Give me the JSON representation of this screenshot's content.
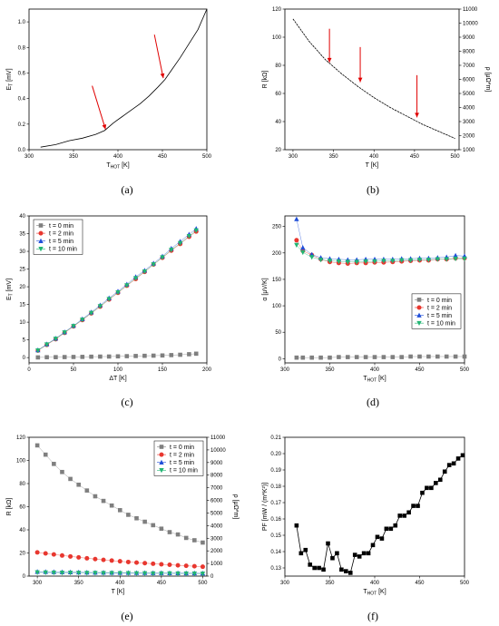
{
  "chart_data": [
    {
      "panel": "(a)",
      "type": "line",
      "xlabel": "T",
      "xlabel_sub": "HOT",
      "xlabel_unit": " [K]",
      "ylabel": "E",
      "ylabel_sub": "T",
      "ylabel_unit": " [mV]",
      "xlim": [
        300,
        500
      ],
      "ylim": [
        0,
        1.1
      ],
      "xticks": [
        "300",
        "350",
        "400",
        "450",
        "500"
      ],
      "yticks": [
        "0.0",
        "0.2",
        "0.4",
        "0.6",
        "0.8",
        "1.0"
      ],
      "color": "#000000",
      "arrow_color": "#e00000",
      "x": [
        313,
        330,
        345,
        360,
        375,
        385,
        395,
        405,
        415,
        425,
        435,
        445,
        453,
        460,
        470,
        480,
        490,
        500
      ],
      "y": [
        0.02,
        0.04,
        0.07,
        0.09,
        0.12,
        0.15,
        0.21,
        0.26,
        0.31,
        0.36,
        0.42,
        0.49,
        0.55,
        0.62,
        0.72,
        0.83,
        0.94,
        1.1
      ],
      "arrows": [
        {
          "from": [
            371,
            0.5
          ],
          "to": [
            386,
            0.16
          ]
        },
        {
          "from": [
            441,
            0.9
          ],
          "to": [
            451,
            0.56
          ]
        }
      ]
    },
    {
      "panel": "(b)",
      "type": "line",
      "xlabel": "T",
      "xlabel_sub": "",
      "xlabel_unit": " [K]",
      "ylabel": "R",
      "ylabel_sub": "",
      "ylabel_unit": " [kΩ]",
      "y2label": "ρ [μΩ*m]",
      "xlim": [
        290,
        505
      ],
      "ylim": [
        20,
        120
      ],
      "y2lim": [
        1000,
        11000
      ],
      "xticks": [
        "300",
        "350",
        "400",
        "450",
        "500"
      ],
      "yticks": [
        "20",
        "40",
        "60",
        "80",
        "100",
        "120"
      ],
      "y2ticks": [
        "1000",
        "2000",
        "3000",
        "4000",
        "5000",
        "6000",
        "7000",
        "8000",
        "9000",
        "10000",
        "11000"
      ],
      "color": "#000000",
      "arrow_color": "#e00000",
      "x": [
        300,
        320,
        340,
        360,
        380,
        400,
        420,
        440,
        460,
        480,
        500
      ],
      "y": [
        113,
        97,
        84,
        74,
        65,
        57,
        50,
        44,
        38,
        33,
        28
      ],
      "arrows": [
        {
          "from": [
            345,
            106
          ],
          "to": [
            345,
            82
          ]
        },
        {
          "from": [
            383,
            93
          ],
          "to": [
            383,
            68
          ]
        },
        {
          "from": [
            453,
            73
          ],
          "to": [
            453,
            43
          ]
        }
      ]
    },
    {
      "panel": "(c)",
      "type": "scatter",
      "xlabel": "ΔT",
      "xlabel_sub": "",
      "xlabel_unit": " [K]",
      "ylabel": "E",
      "ylabel_sub": "T",
      "ylabel_unit": " [mV]",
      "xlim": [
        0,
        200
      ],
      "ylim": [
        -1.5,
        40
      ],
      "xticks": [
        "0",
        "50",
        "100",
        "150",
        "200"
      ],
      "yticks": [
        "0",
        "5",
        "10",
        "15",
        "20",
        "25",
        "30",
        "35",
        "40"
      ],
      "legend_position": "top-left",
      "x": [
        10,
        20,
        30,
        40,
        50,
        60,
        70,
        80,
        90,
        100,
        110,
        120,
        130,
        140,
        150,
        160,
        170,
        180,
        188
      ],
      "series": [
        {
          "name": "t = 0 min",
          "marker": "square",
          "color": "#7f7f7f",
          "values": [
            0.05,
            0.1,
            0.12,
            0.15,
            0.18,
            0.2,
            0.25,
            0.28,
            0.3,
            0.35,
            0.4,
            0.45,
            0.5,
            0.55,
            0.6,
            0.7,
            0.8,
            0.95,
            1.1
          ]
        },
        {
          "name": "t = 2 min",
          "marker": "circle",
          "color": "#e8372f",
          "values": [
            2,
            3.6,
            5.2,
            7,
            8.8,
            10.6,
            12.5,
            14.4,
            16.4,
            18.3,
            20.3,
            22.2,
            24.2,
            26.3,
            28.2,
            30.2,
            32.1,
            34.1,
            35.6
          ]
        },
        {
          "name": "t = 5 min",
          "marker": "triangle-up",
          "color": "#1f4ed8",
          "values": [
            2.1,
            3.8,
            5.4,
            7.2,
            9,
            10.9,
            12.8,
            14.8,
            16.8,
            18.7,
            20.7,
            22.8,
            24.6,
            26.6,
            28.6,
            30.8,
            32.8,
            34.8,
            36.4
          ]
        },
        {
          "name": "t = 10 min",
          "marker": "triangle-down",
          "color": "#22b573",
          "values": [
            2,
            3.7,
            5.3,
            7.1,
            8.9,
            10.7,
            12.6,
            14.5,
            16.5,
            18.4,
            20.4,
            22.4,
            24.3,
            26.3,
            28.3,
            30.4,
            32.3,
            34.3,
            35.9
          ]
        }
      ]
    },
    {
      "panel": "(d)",
      "type": "scatter",
      "xlabel": "T",
      "xlabel_sub": "HOT",
      "xlabel_unit": " [K]",
      "ylabel": "α [μV/K]",
      "ylabel_sub": "",
      "ylabel_unit": "",
      "xlim": [
        300,
        500
      ],
      "ylim": [
        -8,
        270
      ],
      "xticks": [
        "300",
        "350",
        "400",
        "450",
        "500"
      ],
      "yticks": [
        "0",
        "50",
        "100",
        "150",
        "200",
        "250"
      ],
      "legend_position": "center-right",
      "x": [
        313,
        320,
        330,
        340,
        350,
        360,
        370,
        380,
        390,
        400,
        410,
        420,
        430,
        440,
        450,
        460,
        470,
        480,
        490,
        500
      ],
      "series": [
        {
          "name": "t = 0 min",
          "marker": "square",
          "color": "#7f7f7f",
          "values": [
            2,
            2,
            2,
            2,
            2,
            3,
            3,
            3,
            3,
            3,
            3,
            3,
            3,
            4,
            4,
            4,
            4,
            4,
            4,
            4
          ]
        },
        {
          "name": "t = 2 min",
          "marker": "circle",
          "color": "#e8372f",
          "values": [
            224,
            204,
            196,
            188,
            183,
            181,
            180,
            181,
            181,
            182,
            182,
            183,
            184,
            185,
            186,
            186,
            188,
            188,
            190,
            190
          ]
        },
        {
          "name": "t = 5 min",
          "marker": "triangle-up",
          "color": "#1f4ed8",
          "values": [
            264,
            210,
            197,
            191,
            189,
            188,
            187,
            187,
            188,
            188,
            188,
            188,
            189,
            189,
            190,
            190,
            191,
            192,
            195,
            194
          ]
        },
        {
          "name": "t = 10 min",
          "marker": "triangle-down",
          "color": "#22b573",
          "values": [
            215,
            201,
            192,
            187,
            185,
            184,
            183,
            183,
            184,
            184,
            185,
            185,
            186,
            186,
            187,
            187,
            188,
            188,
            189,
            189
          ]
        }
      ]
    },
    {
      "panel": "(e)",
      "type": "scatter",
      "xlabel": "T",
      "xlabel_sub": "",
      "xlabel_unit": " [K]",
      "ylabel": "R",
      "ylabel_sub": "",
      "ylabel_unit": " [kΩ]",
      "y2label": "ρ [μΩ*m]",
      "xlim": [
        290,
        505
      ],
      "ylim": [
        0,
        120
      ],
      "y2lim": [
        0,
        11000
      ],
      "xticks": [
        "300",
        "350",
        "400",
        "450",
        "500"
      ],
      "yticks": [
        "0",
        "20",
        "40",
        "60",
        "80",
        "100",
        "120"
      ],
      "y2ticks": [
        "0",
        "1000",
        "2000",
        "3000",
        "4000",
        "5000",
        "6000",
        "7000",
        "8000",
        "9000",
        "10000",
        "11000"
      ],
      "legend_position": "top-right",
      "x": [
        300,
        310,
        320,
        330,
        340,
        350,
        360,
        370,
        380,
        390,
        400,
        410,
        420,
        430,
        440,
        450,
        460,
        470,
        480,
        490,
        500
      ],
      "series": [
        {
          "name": "t = 0 min",
          "marker": "square",
          "color": "#7f7f7f",
          "values": [
            113,
            105,
            97,
            90,
            84,
            79,
            74,
            69,
            65,
            61,
            57,
            53,
            50,
            47,
            44,
            41,
            38,
            36,
            33,
            31,
            29
          ]
        },
        {
          "name": "t = 2 min",
          "marker": "circle",
          "color": "#e8372f",
          "values": [
            20.5,
            19.6,
            18.7,
            17.8,
            17,
            16.2,
            15.4,
            14.7,
            14,
            13.4,
            12.8,
            12.2,
            11.7,
            11.2,
            10.7,
            10.2,
            9.8,
            9.3,
            8.9,
            8.5,
            8.1
          ]
        },
        {
          "name": "t = 5 min",
          "marker": "triangle-up",
          "color": "#1f4ed8",
          "values": [
            3.8,
            3.7,
            3.6,
            3.5,
            3.4,
            3.3,
            3.2,
            3.1,
            3.1,
            3,
            2.9,
            2.9,
            2.8,
            2.8,
            2.7,
            2.7,
            2.6,
            2.6,
            2.5,
            2.5,
            2.4
          ]
        },
        {
          "name": "t = 10 min",
          "marker": "triangle-down",
          "color": "#22b573",
          "values": [
            3.2,
            3.1,
            3,
            2.9,
            2.9,
            2.8,
            2.7,
            2.7,
            2.6,
            2.6,
            2.5,
            2.5,
            2.4,
            2.4,
            2.3,
            2.3,
            2.3,
            2.2,
            2.2,
            2.2,
            2.1
          ]
        }
      ]
    },
    {
      "panel": "(f)",
      "type": "line",
      "xlabel": "T",
      "xlabel_sub": "HOT",
      "xlabel_unit": " [K]",
      "ylabel": "PF [mW / (m*K²)]",
      "ylabel_sub": "",
      "ylabel_unit": "",
      "xlim": [
        300,
        500
      ],
      "ylim": [
        0.125,
        0.21
      ],
      "xticks": [
        "300",
        "350",
        "400",
        "450",
        "500"
      ],
      "yticks": [
        "0.13",
        "0.14",
        "0.15",
        "0.16",
        "0.17",
        "0.18",
        "0.19",
        "0.20",
        "0.21"
      ],
      "color": "#000000",
      "marker": "square",
      "x": [
        313,
        318,
        323,
        328,
        333,
        338,
        343,
        348,
        353,
        358,
        363,
        368,
        373,
        378,
        383,
        388,
        393,
        398,
        403,
        408,
        413,
        418,
        423,
        428,
        433,
        438,
        443,
        448,
        453,
        458,
        463,
        468,
        473,
        478,
        483,
        488,
        493,
        498
      ],
      "y": [
        0.156,
        0.139,
        0.141,
        0.132,
        0.13,
        0.13,
        0.129,
        0.145,
        0.136,
        0.139,
        0.129,
        0.128,
        0.127,
        0.138,
        0.137,
        0.139,
        0.139,
        0.144,
        0.149,
        0.148,
        0.154,
        0.154,
        0.156,
        0.162,
        0.162,
        0.164,
        0.168,
        0.168,
        0.176,
        0.179,
        0.179,
        0.182,
        0.184,
        0.189,
        0.193,
        0.194,
        0.197,
        0.199
      ]
    }
  ]
}
